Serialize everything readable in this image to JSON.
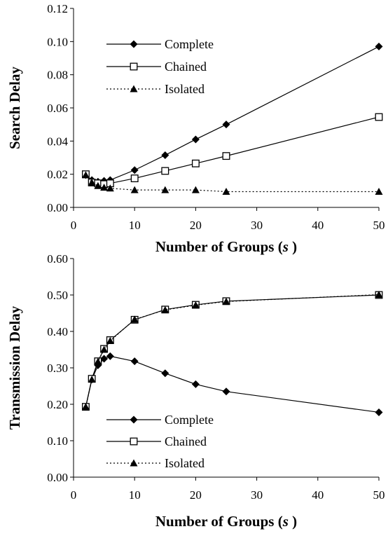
{
  "chart_data": [
    {
      "type": "line",
      "xlabel": "Number of Groups (s)",
      "ylabel": "Search Delay",
      "xlim": [
        0,
        50
      ],
      "ylim": [
        0,
        0.12
      ],
      "xticks": [
        "0",
        "10",
        "20",
        "30",
        "40",
        "50"
      ],
      "yticks": [
        "0.00",
        "0.02",
        "0.04",
        "0.06",
        "0.08",
        "0.10",
        "0.12"
      ],
      "grid": false,
      "legend_position": "top-left",
      "x": [
        2,
        3,
        4,
        5,
        6,
        10,
        15,
        20,
        25,
        50
      ],
      "series": [
        {
          "name": "Complete",
          "marker": "diamond",
          "line": "solid",
          "values": [
            0.0195,
            0.0165,
            0.0155,
            0.016,
            0.0165,
            0.0225,
            0.0315,
            0.041,
            0.05,
            0.097
          ]
        },
        {
          "name": "Chained",
          "marker": "square-open",
          "line": "solid",
          "values": [
            0.02,
            0.015,
            0.0145,
            0.014,
            0.0145,
            0.0175,
            0.022,
            0.0265,
            0.031,
            0.0545
          ]
        },
        {
          "name": "Isolated",
          "marker": "triangle",
          "line": "dotted",
          "values": [
            0.0195,
            0.015,
            0.013,
            0.012,
            0.0115,
            0.0105,
            0.0105,
            0.0105,
            0.0095,
            0.0095
          ]
        }
      ]
    },
    {
      "type": "line",
      "xlabel": "Number of Groups (s)",
      "ylabel": "Transmission Delay",
      "xlim": [
        0,
        50
      ],
      "ylim": [
        0,
        0.6
      ],
      "xticks": [
        "0",
        "10",
        "20",
        "30",
        "40",
        "50"
      ],
      "yticks": [
        "0.00",
        "0.10",
        "0.20",
        "0.30",
        "0.40",
        "0.50",
        "0.60"
      ],
      "grid": false,
      "legend_position": "bottom-left",
      "x": [
        2,
        3,
        4,
        5,
        6,
        10,
        15,
        20,
        25,
        50
      ],
      "series": [
        {
          "name": "Complete",
          "marker": "diamond",
          "line": "solid",
          "values": [
            0.193,
            0.268,
            0.307,
            0.325,
            0.332,
            0.318,
            0.285,
            0.255,
            0.235,
            0.178
          ]
        },
        {
          "name": "Chained",
          "marker": "square-open",
          "line": "solid",
          "values": [
            0.193,
            0.27,
            0.318,
            0.352,
            0.376,
            0.432,
            0.46,
            0.473,
            0.483,
            0.5
          ]
        },
        {
          "name": "Isolated",
          "marker": "triangle",
          "line": "dotted",
          "values": [
            0.193,
            0.268,
            0.317,
            0.35,
            0.374,
            0.433,
            0.459,
            0.472,
            0.482,
            0.501
          ]
        }
      ]
    }
  ]
}
